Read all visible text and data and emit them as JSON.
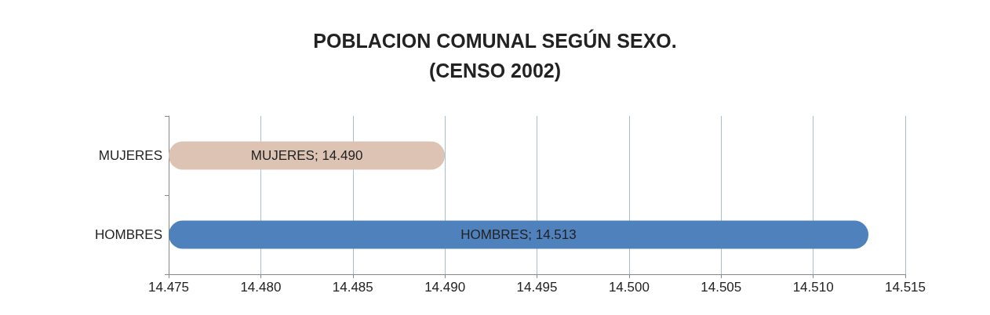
{
  "chart_data": {
    "type": "bar",
    "orientation": "horizontal",
    "title": "POBLACION COMUNAL SEGÚN SEXO.\n(CENSO 2002)",
    "categories": [
      "MUJERES",
      "HOMBRES"
    ],
    "values": [
      14490,
      14513
    ],
    "colors": [
      "#dcc3b3",
      "#4f81bd"
    ],
    "value_labels": [
      "MUJERES; 14.490",
      "HOMBRES; 14.513"
    ],
    "xlim": [
      14475,
      14515
    ],
    "xticks": [
      {
        "value": 14475,
        "label": "14.475"
      },
      {
        "value": 14480,
        "label": "14.480"
      },
      {
        "value": 14485,
        "label": "14.485"
      },
      {
        "value": 14490,
        "label": "14.490"
      },
      {
        "value": 14495,
        "label": "14.495"
      },
      {
        "value": 14500,
        "label": "14.500"
      },
      {
        "value": 14505,
        "label": "14.505"
      },
      {
        "value": 14510,
        "label": "14.510"
      },
      {
        "value": 14515,
        "label": "14.515"
      }
    ],
    "grid": "x"
  }
}
